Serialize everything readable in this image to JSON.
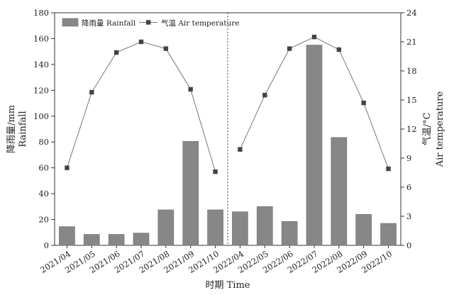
{
  "chart_data": {
    "type": "bar+line",
    "categories": [
      "2021/04",
      "2021/05",
      "2021/06",
      "2021/07",
      "2021/08",
      "2021/09",
      "2021/10",
      "2022/04",
      "2022/05",
      "2022/06",
      "2022/07",
      "2022/08",
      "2022/09",
      "2022/10"
    ],
    "series": [
      {
        "name": "降雨量 Rainfall",
        "type": "bar",
        "axis": "left",
        "color": "#878787",
        "values": [
          14.5,
          8.5,
          8.5,
          9.5,
          27.5,
          80.5,
          27.5,
          26,
          30,
          18.5,
          155,
          83.5,
          24,
          17
        ]
      },
      {
        "name": "气温 Air temperature",
        "type": "line",
        "axis": "right",
        "color": "#555555",
        "marker": "square",
        "values": [
          8.0,
          15.8,
          19.9,
          21.0,
          20.3,
          16.1,
          7.6,
          9.9,
          15.5,
          20.3,
          21.5,
          20.2,
          14.7,
          7.9
        ]
      }
    ],
    "xlabel": "时期 Time",
    "ylabel_left": "降雨量/mm Rainfall",
    "ylabel_right": "气温/°C Air temperature",
    "ylim_left": [
      0,
      180
    ],
    "ylim_right": [
      0,
      24
    ],
    "yticks_left": [
      0,
      20,
      40,
      60,
      80,
      100,
      120,
      140,
      160,
      180
    ],
    "yticks_right": [
      0,
      3,
      6,
      9,
      12,
      15,
      18,
      21,
      24
    ],
    "ylabel_left_lines": [
      "降雨量/mm",
      "Rainfall"
    ],
    "ylabel_right_lines": [
      "气温/°C",
      "Air temperature"
    ],
    "divider": "dotted vertical line between 2021/10 and 2022/04",
    "grid": false,
    "legend": "top-left"
  }
}
